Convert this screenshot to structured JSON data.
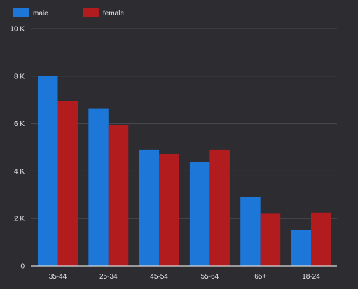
{
  "chart_data": {
    "type": "bar",
    "categories": [
      "35-44",
      "25-34",
      "45-54",
      "55-64",
      "65+",
      "18-24"
    ],
    "series": [
      {
        "name": "male",
        "color": "#1c77d8",
        "values": [
          8000,
          6620,
          4900,
          4380,
          2920,
          1530
        ]
      },
      {
        "name": "female",
        "color": "#b21c1f",
        "values": [
          6950,
          5950,
          4720,
          4900,
          2200,
          2250
        ]
      }
    ],
    "y_ticks": [
      {
        "value": 0,
        "label": "0"
      },
      {
        "value": 2000,
        "label": "2 K"
      },
      {
        "value": 4000,
        "label": "4 K"
      },
      {
        "value": 6000,
        "label": "6 K"
      },
      {
        "value": 8000,
        "label": "8 K"
      },
      {
        "value": 10000,
        "label": "10 K"
      }
    ],
    "ylim": [
      0,
      10000
    ],
    "grid": true,
    "legend_position": "top-left",
    "background": "#2d2c31"
  }
}
